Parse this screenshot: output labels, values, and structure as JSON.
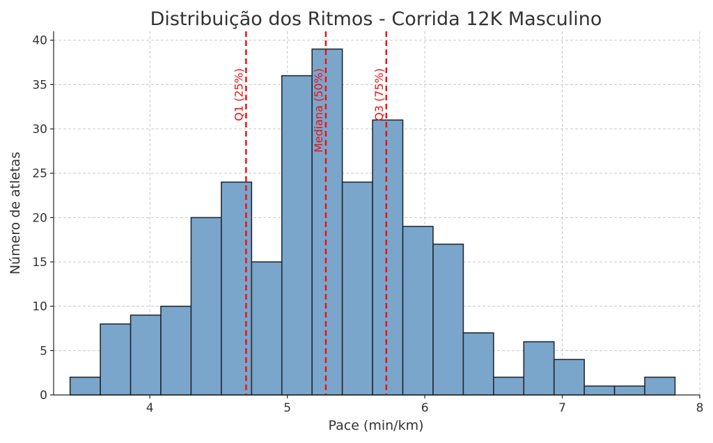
{
  "chart_data": {
    "type": "bar",
    "title": "Distribuição dos Ritmos - Corrida 12K Masculino",
    "xlabel": "Pace (min/km)",
    "ylabel": "Número de atletas",
    "xlim": [
      3.3,
      8.0
    ],
    "ylim": [
      0,
      41
    ],
    "xticks": [
      4,
      5,
      6,
      7,
      8
    ],
    "yticks": [
      0,
      5,
      10,
      15,
      20,
      25,
      30,
      35,
      40
    ],
    "grid": true,
    "bar_color": "#7ba6cb",
    "bins": [
      {
        "start": 3.42,
        "end": 3.64,
        "count": 2
      },
      {
        "start": 3.64,
        "end": 3.86,
        "count": 8
      },
      {
        "start": 3.86,
        "end": 4.08,
        "count": 9
      },
      {
        "start": 4.08,
        "end": 4.3,
        "count": 10
      },
      {
        "start": 4.3,
        "end": 4.52,
        "count": 20
      },
      {
        "start": 4.52,
        "end": 4.74,
        "count": 24
      },
      {
        "start": 4.74,
        "end": 4.96,
        "count": 15
      },
      {
        "start": 4.96,
        "end": 5.18,
        "count": 36
      },
      {
        "start": 5.18,
        "end": 5.4,
        "count": 39
      },
      {
        "start": 5.4,
        "end": 5.62,
        "count": 24
      },
      {
        "start": 5.62,
        "end": 5.84,
        "count": 31
      },
      {
        "start": 5.84,
        "end": 6.06,
        "count": 19
      },
      {
        "start": 6.06,
        "end": 6.28,
        "count": 17
      },
      {
        "start": 6.28,
        "end": 6.5,
        "count": 7
      },
      {
        "start": 6.5,
        "end": 6.72,
        "count": 2
      },
      {
        "start": 6.72,
        "end": 6.94,
        "count": 6
      },
      {
        "start": 6.94,
        "end": 7.16,
        "count": 4
      },
      {
        "start": 7.16,
        "end": 7.38,
        "count": 1
      },
      {
        "start": 7.38,
        "end": 7.6,
        "count": 1
      },
      {
        "start": 7.6,
        "end": 7.82,
        "count": 2
      }
    ],
    "reference_lines": [
      {
        "label": "Q1 (25%)",
        "x": 4.7,
        "color": "#ee1111"
      },
      {
        "label": "Mediana (50%)",
        "x": 5.28,
        "color": "#ee1111"
      },
      {
        "label": "Q3 (75%)",
        "x": 5.72,
        "color": "#ee1111"
      }
    ]
  }
}
